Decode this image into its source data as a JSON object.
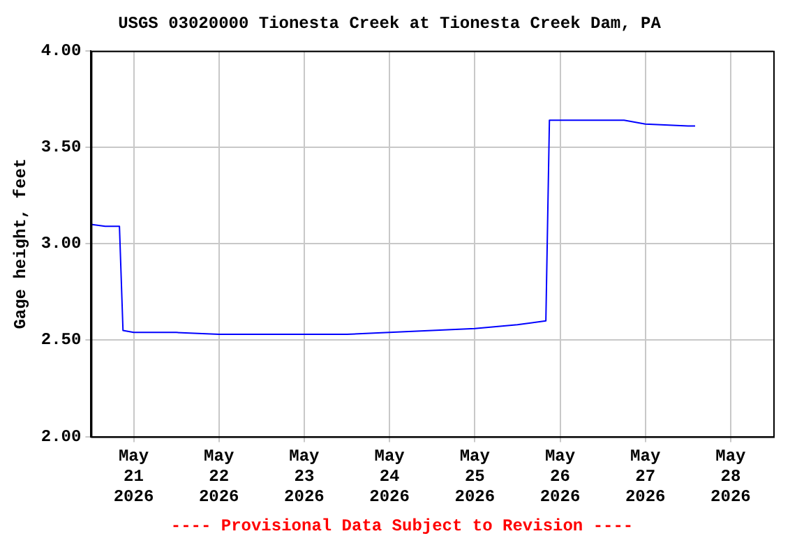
{
  "chart_data": {
    "type": "line",
    "title": "USGS 03020000 Tionesta Creek at Tionesta Creek Dam, PA",
    "ylabel": "Gage height, feet",
    "x": [
      "2026-05-20T12:00",
      "2026-05-20T16:00",
      "2026-05-20T20:00",
      "2026-05-20T21:00",
      "2026-05-21T00:00",
      "2026-05-21T12:00",
      "2026-05-22T00:00",
      "2026-05-22T12:00",
      "2026-05-23T00:00",
      "2026-05-23T12:00",
      "2026-05-24T00:00",
      "2026-05-24T12:00",
      "2026-05-25T00:00",
      "2026-05-25T12:00",
      "2026-05-25T20:00",
      "2026-05-25T21:00",
      "2026-05-26T00:00",
      "2026-05-26T12:00",
      "2026-05-26T18:00",
      "2026-05-27T00:00",
      "2026-05-27T12:00",
      "2026-05-27T14:00"
    ],
    "series": [
      {
        "color": "#0000ff",
        "values": [
          3.1,
          3.09,
          3.09,
          2.55,
          2.54,
          2.54,
          2.53,
          2.53,
          2.53,
          2.53,
          2.54,
          2.55,
          2.56,
          2.58,
          2.6,
          3.64,
          3.64,
          3.64,
          3.64,
          3.62,
          3.61,
          3.61
        ]
      }
    ],
    "xlim": [
      "2026-05-20T12:00",
      "2026-05-28T12:00"
    ],
    "xticks": [
      {
        "value": "2026-05-21",
        "label": "May 21 2026"
      },
      {
        "value": "2026-05-22",
        "label": "May 22 2026"
      },
      {
        "value": "2026-05-23",
        "label": "May 23 2026"
      },
      {
        "value": "2026-05-24",
        "label": "May 24 2026"
      },
      {
        "value": "2026-05-25",
        "label": "May 25 2026"
      },
      {
        "value": "2026-05-26",
        "label": "May 26 2026"
      },
      {
        "value": "2026-05-27",
        "label": "May 27 2026"
      },
      {
        "value": "2026-05-28",
        "label": "May 28 2026"
      }
    ],
    "ylim": [
      2,
      4
    ],
    "yticks": [
      {
        "value": 2,
        "label": "2.00"
      },
      {
        "value": 2.5,
        "label": "2.50"
      },
      {
        "value": 3,
        "label": "3.00"
      },
      {
        "value": 3.5,
        "label": "3.50"
      },
      {
        "value": 4,
        "label": "4.00"
      }
    ],
    "grid": true,
    "legend": false,
    "annotations": [
      "---- Provisional Data Subject to Revision ----"
    ]
  }
}
